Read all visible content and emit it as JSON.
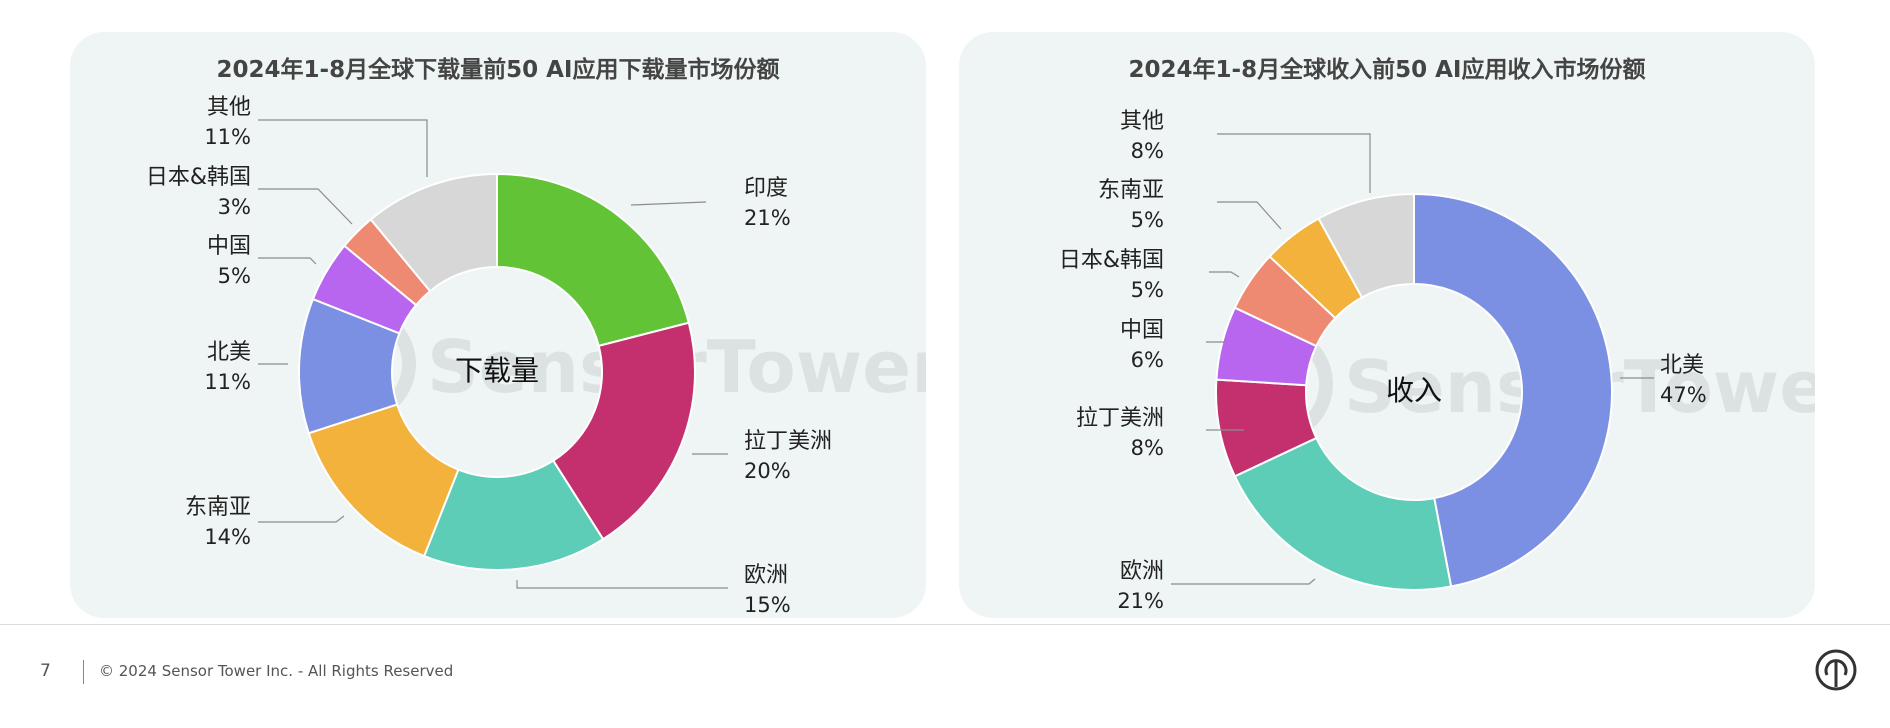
{
  "footer": {
    "page_number": "7",
    "copyright": "© 2024 Sensor Tower Inc. - All Rights Reserved"
  },
  "watermark": "SensorTower",
  "chart_data": [
    {
      "type": "pie",
      "title": "2024年1-8月全球下载量前50 AI应用下载量市场份额",
      "center_label": "下载量",
      "slices": [
        {
          "label": "印度",
          "value": 21,
          "value_label": "21%",
          "color": "#62c336"
        },
        {
          "label": "拉丁美洲",
          "value": 20,
          "value_label": "20%",
          "color": "#c4306e"
        },
        {
          "label": "欧洲",
          "value": 15,
          "value_label": "15%",
          "color": "#5ecdb8"
        },
        {
          "label": "东南亚",
          "value": 14,
          "value_label": "14%",
          "color": "#f2b23c"
        },
        {
          "label": "北美",
          "value": 11,
          "value_label": "11%",
          "color": "#7b8fe3"
        },
        {
          "label": "中国",
          "value": 5,
          "value_label": "5%",
          "color": "#b866ef"
        },
        {
          "label": "日本&韩国",
          "value": 3,
          "value_label": "3%",
          "color": "#ef8a72"
        },
        {
          "label": "其他",
          "value": 11,
          "value_label": "11%",
          "color": "#d7d7d7"
        }
      ]
    },
    {
      "type": "pie",
      "title": "2024年1-8月全球收入前50 AI应用收入市场份额",
      "center_label": "收入",
      "slices": [
        {
          "label": "北美",
          "value": 47,
          "value_label": "47%",
          "color": "#7b8fe3"
        },
        {
          "label": "欧洲",
          "value": 21,
          "value_label": "21%",
          "color": "#5ecdb8"
        },
        {
          "label": "拉丁美洲",
          "value": 8,
          "value_label": "8%",
          "color": "#c4306e"
        },
        {
          "label": "中国",
          "value": 6,
          "value_label": "6%",
          "color": "#b866ef"
        },
        {
          "label": "日本&韩国",
          "value": 5,
          "value_label": "5%",
          "color": "#ef8a72"
        },
        {
          "label": "东南亚",
          "value": 5,
          "value_label": "5%",
          "color": "#f2b23c"
        },
        {
          "label": "其他",
          "value": 8,
          "value_label": "8%",
          "color": "#d7d7d7"
        }
      ]
    }
  ]
}
